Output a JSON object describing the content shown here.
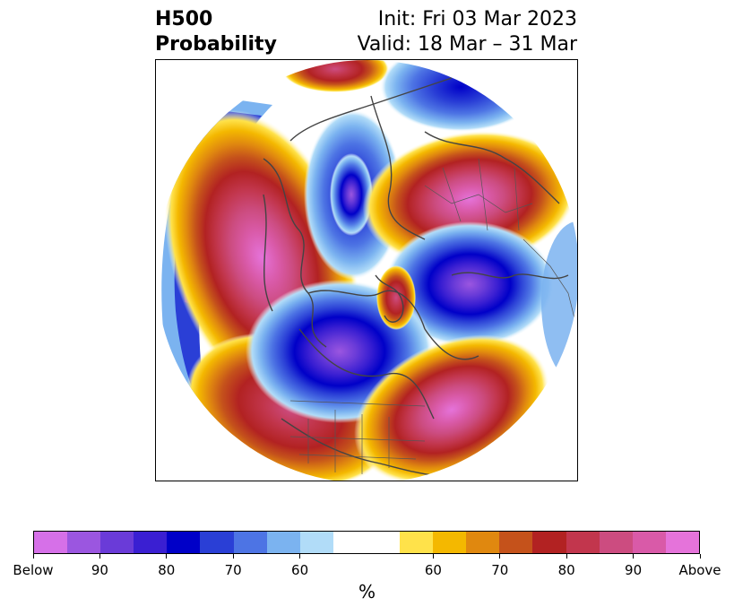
{
  "header": {
    "title_line1": "H500",
    "title_line2": "Probability",
    "init_text": "Init: Fri 03 Mar 2023",
    "valid_text": "Valid: 18 Mar – 31 Mar"
  },
  "map": {
    "projection": "north-polar-stereographic",
    "anomalies": [
      {
        "name": "western-north-america-ridge",
        "sign": "above",
        "peak_probability": "above-90"
      },
      {
        "name": "hudson-bay-trough",
        "sign": "below",
        "peak_probability": "90"
      },
      {
        "name": "north-atlantic-ridge",
        "sign": "above",
        "peak_probability": "90"
      },
      {
        "name": "eastern-siberia-ridge",
        "sign": "above",
        "peak_probability": "above-90"
      },
      {
        "name": "eurasian-arctic-trough",
        "sign": "below",
        "peak_probability": "90"
      },
      {
        "name": "alaska-siberia-trough",
        "sign": "below",
        "peak_probability": "80"
      },
      {
        "name": "north-pacific-arc",
        "sign": "below",
        "peak_probability": "90"
      }
    ]
  },
  "colorbar": {
    "colors": [
      "#d670e8",
      "#9b56e0",
      "#6a3bd8",
      "#3a1fd2",
      "#0000c8",
      "#2a3fd6",
      "#4d74e4",
      "#7bb3f0",
      "#b1dcf8",
      "#ffffff",
      "#ffffff",
      "#ffe24a",
      "#f4b800",
      "#e0880f",
      "#c5521b",
      "#b22222",
      "#c2364d",
      "#cc4c80",
      "#d95aa8",
      "#e573da"
    ],
    "tick_labels": [
      "Below",
      "90",
      "80",
      "70",
      "60",
      "60",
      "70",
      "80",
      "90",
      "Above"
    ],
    "label": "%"
  }
}
